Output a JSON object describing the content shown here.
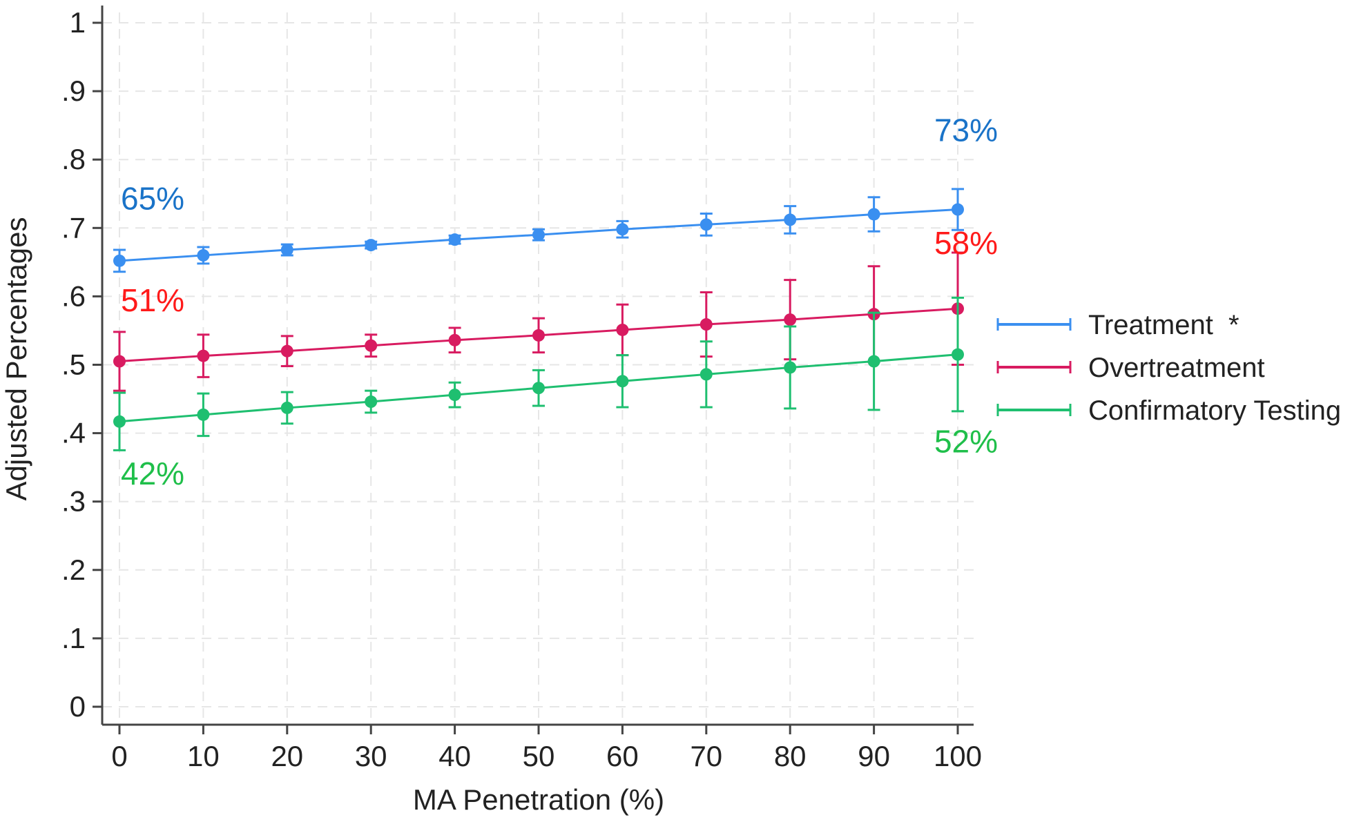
{
  "chart_data": {
    "type": "line",
    "title": "",
    "xlabel": "MA Penetration (%)",
    "ylabel": "Adjusted Percentages",
    "x": [
      0,
      10,
      20,
      30,
      40,
      50,
      60,
      70,
      80,
      90,
      100
    ],
    "xlim": [
      0,
      100
    ],
    "ylim": [
      0,
      1
    ],
    "x_ticks": [
      "0",
      "10",
      "20",
      "30",
      "40",
      "50",
      "60",
      "70",
      "80",
      "90",
      "100"
    ],
    "y_ticks": [
      {
        "value": 0,
        "label": "0"
      },
      {
        "value": 0.1,
        "label": ".1"
      },
      {
        "value": 0.2,
        "label": ".2"
      },
      {
        "value": 0.3,
        "label": ".3"
      },
      {
        "value": 0.4,
        "label": ".4"
      },
      {
        "value": 0.5,
        "label": ".5"
      },
      {
        "value": 0.6,
        "label": ".6"
      },
      {
        "value": 0.7,
        "label": ".7"
      },
      {
        "value": 0.8,
        "label": ".8"
      },
      {
        "value": 0.9,
        "label": ".9"
      },
      {
        "value": 1,
        "label": "1"
      }
    ],
    "grid": true,
    "legend_position": "right",
    "series": [
      {
        "name": "Treatment  *",
        "color": "#3a8ff0",
        "values": [
          0.652,
          0.66,
          0.668,
          0.675,
          0.683,
          0.69,
          0.698,
          0.705,
          0.712,
          0.72,
          0.727
        ],
        "ci_low": [
          0.636,
          0.648,
          0.66,
          0.67,
          0.677,
          0.682,
          0.686,
          0.689,
          0.692,
          0.695,
          0.697
        ],
        "ci_high": [
          0.668,
          0.672,
          0.676,
          0.68,
          0.689,
          0.698,
          0.71,
          0.721,
          0.732,
          0.745,
          0.757
        ]
      },
      {
        "name": "Overtreatment",
        "color": "#d81b60",
        "values": [
          0.505,
          0.513,
          0.52,
          0.528,
          0.536,
          0.543,
          0.551,
          0.559,
          0.566,
          0.574,
          0.582
        ],
        "ci_low": [
          0.462,
          0.482,
          0.498,
          0.512,
          0.518,
          0.518,
          0.514,
          0.512,
          0.508,
          0.504,
          0.5
        ],
        "ci_high": [
          0.548,
          0.544,
          0.542,
          0.544,
          0.554,
          0.568,
          0.588,
          0.606,
          0.624,
          0.644,
          0.664
        ]
      },
      {
        "name": "Confirmatory Testing",
        "color": "#1fbf70",
        "values": [
          0.417,
          0.427,
          0.437,
          0.446,
          0.456,
          0.466,
          0.476,
          0.486,
          0.496,
          0.505,
          0.515
        ],
        "ci_low": [
          0.375,
          0.396,
          0.414,
          0.43,
          0.438,
          0.44,
          0.438,
          0.438,
          0.436,
          0.434,
          0.432
        ],
        "ci_high": [
          0.459,
          0.458,
          0.46,
          0.462,
          0.474,
          0.492,
          0.514,
          0.534,
          0.556,
          0.576,
          0.598
        ]
      }
    ],
    "annotations": [
      {
        "text": "65%",
        "color": "#1a73c8",
        "x": 0,
        "y": 0.727,
        "anchor": "start"
      },
      {
        "text": "73%",
        "color": "#1a73c8",
        "x": 100,
        "y": 0.827,
        "anchor": "middle"
      },
      {
        "text": "51%",
        "color": "#ff1a1a",
        "x": 0,
        "y": 0.578,
        "anchor": "start"
      },
      {
        "text": "58%",
        "color": "#ff1a1a",
        "x": 100,
        "y": 0.662,
        "anchor": "middle"
      },
      {
        "text": "42%",
        "color": "#1fbf4a",
        "x": 0,
        "y": 0.325,
        "anchor": "start"
      },
      {
        "text": "52%",
        "color": "#1fbf4a",
        "x": 100,
        "y": 0.372,
        "anchor": "middle"
      }
    ]
  }
}
